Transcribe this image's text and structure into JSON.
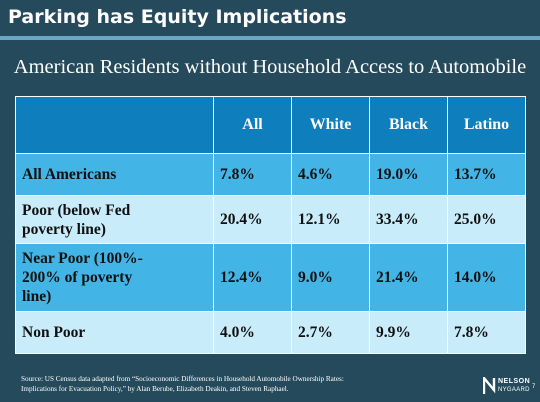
{
  "slide": {
    "title": "Parking has Equity Implications",
    "subtitle": "American Residents without Household Access to Automobile",
    "page_number": "7"
  },
  "table": {
    "headers": [
      "",
      "All",
      "White",
      "Black",
      "Latino"
    ],
    "rows": [
      {
        "label_lines": [
          "All Americans"
        ],
        "values": [
          "7.8%",
          "4.6%",
          "19.0%",
          "13.7%"
        ]
      },
      {
        "label_lines": [
          "Poor (below Fed",
          "poverty line)"
        ],
        "values": [
          "20.4%",
          "12.1%",
          "33.4%",
          "25.0%"
        ]
      },
      {
        "label_lines": [
          "Near Poor (100%-",
          "200% of poverty",
          "line)"
        ],
        "values": [
          "12.4%",
          "9.0%",
          "21.4%",
          "14.0%"
        ]
      },
      {
        "label_lines": [
          "Non Poor"
        ],
        "values": [
          "4.0%",
          "2.7%",
          "9.9%",
          "7.8%"
        ]
      }
    ]
  },
  "source": {
    "line1": "Source: US Census data adapted from “Socioeconomic Differences in Household Automobile Ownership Rates:",
    "line2": "Implications for Evacuation Policy,” by Alan Berube, Elizabeth Deakin, and Steven Raphael."
  },
  "logo": {
    "line1": "NELSON",
    "line2": "NYGAARD",
    "icon": "nelson-nygaard-logo-mark"
  },
  "colors": {
    "background": "#254a5c",
    "accent_bar": "#6aa6c6",
    "header_fill": "#0e7ebc",
    "row_dark": "#43b4e6",
    "row_light": "#c9ecfa"
  }
}
